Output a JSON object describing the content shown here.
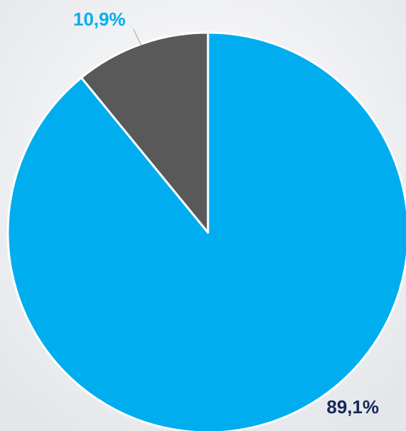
{
  "chart_data": {
    "type": "pie",
    "values": [
      89.1,
      10.9
    ],
    "value_labels": [
      "89,1%",
      "10,9%"
    ],
    "colors": [
      "#00aeef",
      "#595959"
    ],
    "label_colors": [
      "#14285a",
      "#00aeef"
    ]
  }
}
